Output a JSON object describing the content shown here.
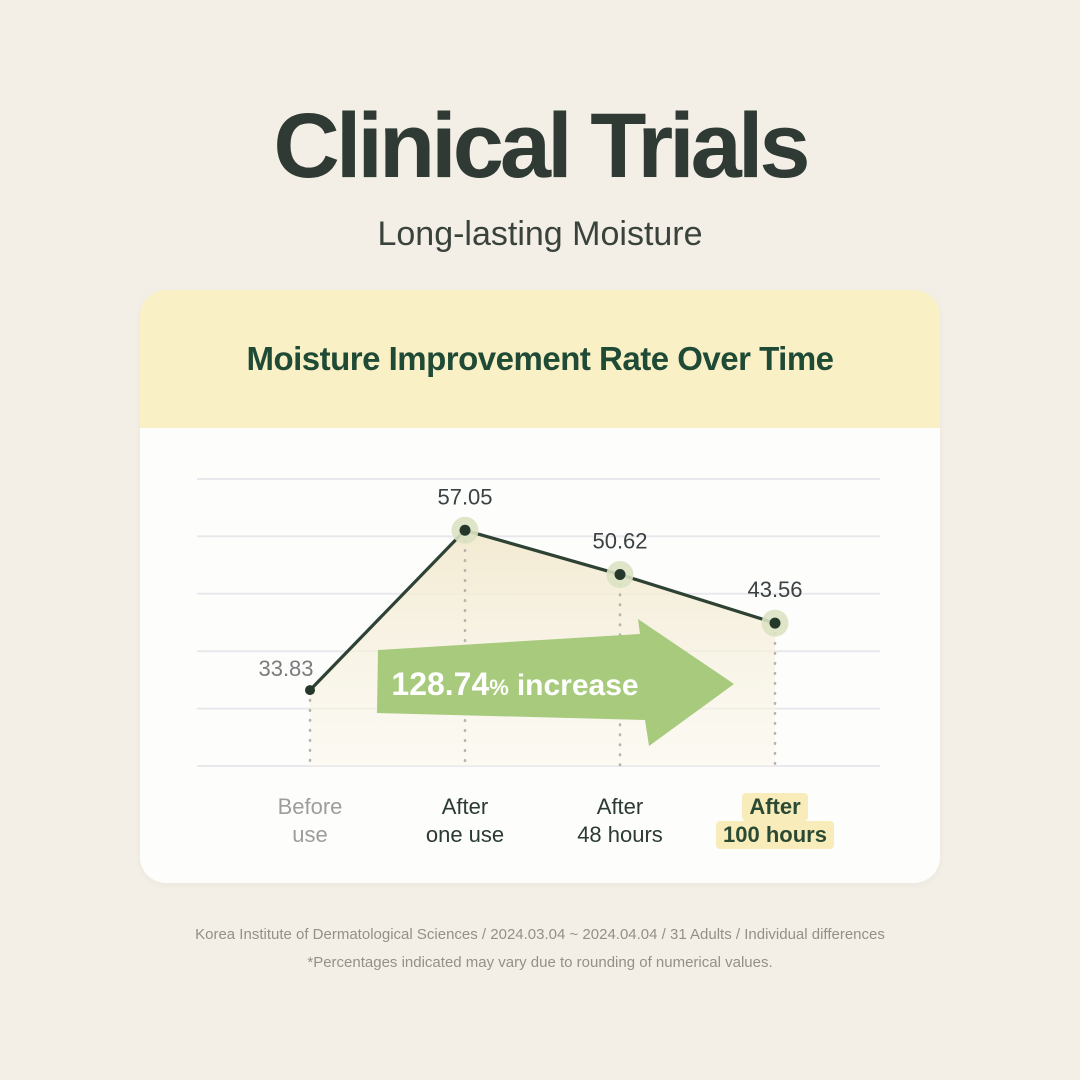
{
  "header": {
    "title": "Clinical Trials",
    "subtitle": "Long-lasting Moisture"
  },
  "card": {
    "title": "Moisture Improvement Rate Over Time"
  },
  "chart_data": {
    "type": "line",
    "title": "Moisture Improvement Rate Over Time",
    "categories": [
      "Before use",
      "After one use",
      "After 48 hours",
      "After 100 hours"
    ],
    "values": [
      33.83,
      57.05,
      50.62,
      43.56
    ],
    "value_labels": [
      "33.83",
      "57.05",
      "50.62",
      "43.56"
    ],
    "category_styles": [
      "muted",
      "normal",
      "normal",
      "highlight"
    ],
    "ylim": [
      22.8,
      64.5
    ],
    "grid": true,
    "gridline_count": 6,
    "legend": "none",
    "area_fill": true,
    "annotation": {
      "value": "128.74",
      "unit": "%",
      "suffix": "increase",
      "combined": "128.74% increase"
    }
  },
  "footer": {
    "source": "Korea Institute of Dermatological Sciences / 2024.03.04 ~ 2024.04.04 / 31 Adults / Individual differences",
    "disclaimer": "*Percentages indicated may vary due to rounding of numerical values."
  },
  "colors": {
    "background": "#f3efe6",
    "card_bg": "#fdfdfc",
    "header_band": "#faf0c6",
    "page_title_text": "#2e3a33",
    "card_title_text": "#1e4a36",
    "line": "#2d4233",
    "dot": "#24392b",
    "dot_halo": "#dbe2c2",
    "area_top": "#f2e9cf",
    "area_bottom": "#faf6ea",
    "grid": "#e9e9ed",
    "guide_dots": "#b5b5ae",
    "arrow": "#a7ca7d",
    "arrow_text": "#ffffff",
    "value_label": "#3b4142",
    "value_label_muted": "#7b7b7d",
    "xlabel_muted": "#9d9d99",
    "xlabel_dark": "#2c3a34",
    "xlabel_highlight_text": "#2b4a33",
    "xlabel_highlight_bg": "#f8ecbb",
    "footnote": "#93908a"
  }
}
